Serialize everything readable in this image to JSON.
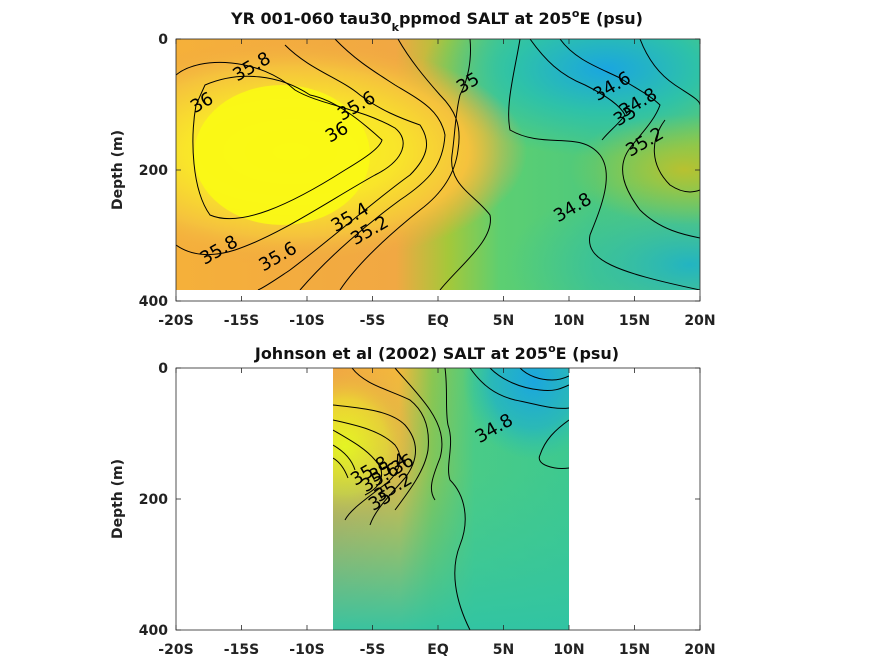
{
  "colors": {
    "colormap": [
      "#1aa6e0",
      "#2ec2a8",
      "#5ccf72",
      "#a4c83a",
      "#f1a843",
      "#f9dc2c",
      "#fafa14"
    ]
  },
  "chart_data": [
    {
      "type": "heatmap",
      "title_main": "YR 001-060 tau30",
      "title_sub": "k",
      "title_rest": "ppmod SALT at 205",
      "title_sup": "o",
      "title_end": "E (psu)",
      "ylabel": "Depth (m)",
      "xlim": [
        -20,
        20
      ],
      "ylim": [
        0,
        400
      ],
      "data_extent": {
        "x": [
          -20,
          20
        ],
        "y": [
          0,
          385
        ]
      },
      "x_tick_values": [
        -20,
        -15,
        -10,
        -5,
        0,
        5,
        10,
        15,
        20
      ],
      "x_tick_labels": [
        "-20S",
        "-15S",
        "-10S",
        "-5S",
        "EQ",
        "5N",
        "10N",
        "15N",
        "20N"
      ],
      "y_tick_values": [
        0,
        200,
        400
      ],
      "y_tick_labels": [
        "0",
        "200",
        "400"
      ],
      "contour_interval": 0.2,
      "salinity_range": [
        34.4,
        36.2
      ],
      "contour_labels": [
        {
          "text": "35.8",
          "x": -14,
          "y": 50
        },
        {
          "text": "36",
          "x": -17.8,
          "y": 105
        },
        {
          "text": "35.6",
          "x": -6,
          "y": 110
        },
        {
          "text": "36",
          "x": -7.5,
          "y": 150
        },
        {
          "text": "35",
          "x": 2.5,
          "y": 75
        },
        {
          "text": "34.6",
          "x": 13.5,
          "y": 80
        },
        {
          "text": "34.8",
          "x": 15.5,
          "y": 105
        },
        {
          "text": "35",
          "x": 14.5,
          "y": 125
        },
        {
          "text": "35.2",
          "x": 16,
          "y": 165
        },
        {
          "text": "35.4",
          "x": -6.5,
          "y": 280
        },
        {
          "text": "35.2",
          "x": -5,
          "y": 300
        },
        {
          "text": "34.8",
          "x": 10.5,
          "y": 265
        },
        {
          "text": "35.8",
          "x": -16.5,
          "y": 330
        },
        {
          "text": "35.6",
          "x": -12,
          "y": 340
        }
      ]
    },
    {
      "type": "heatmap",
      "title_main": "Johnson et al (2002) SALT at 205",
      "title_sup": "o",
      "title_end": "E (psu)",
      "ylabel": "Depth (m)",
      "xlim": [
        -20,
        20
      ],
      "ylim": [
        0,
        400
      ],
      "data_extent": {
        "x": [
          -8,
          10
        ],
        "y": [
          0,
          400
        ]
      },
      "x_tick_values": [
        -20,
        -15,
        -10,
        -5,
        0,
        5,
        10,
        15,
        20
      ],
      "x_tick_labels": [
        "-20S",
        "-15S",
        "-10S",
        "-5S",
        "EQ",
        "5N",
        "10N",
        "15N",
        "20N"
      ],
      "y_tick_values": [
        0,
        200,
        400
      ],
      "y_tick_labels": [
        "0",
        "200",
        "400"
      ],
      "contour_interval": 0.2,
      "salinity_range": [
        34.4,
        36.2
      ],
      "contour_labels": [
        {
          "text": "34.8",
          "x": 4.5,
          "y": 100
        },
        {
          "text": "36",
          "x": -2.5,
          "y": 155
        },
        {
          "text": "35.8",
          "x": -5,
          "y": 165
        },
        {
          "text": "35.6",
          "x": -4.2,
          "y": 175
        },
        {
          "text": "35.4",
          "x": -3.6,
          "y": 160
        },
        {
          "text": "35.2",
          "x": -3.2,
          "y": 190
        },
        {
          "text": "35",
          "x": -4.2,
          "y": 210
        }
      ]
    }
  ]
}
